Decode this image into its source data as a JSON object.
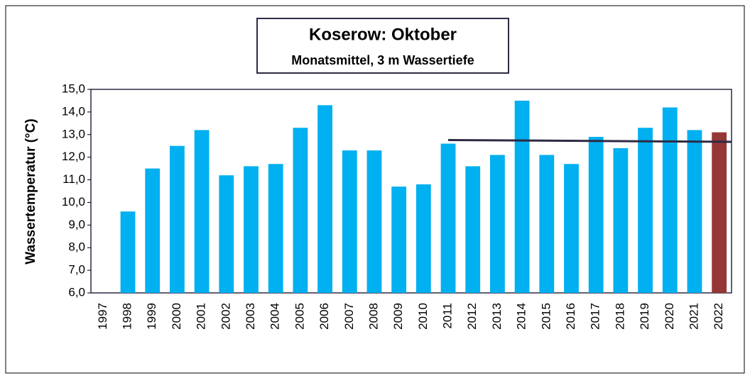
{
  "chart_data": {
    "type": "bar",
    "title": "Koserow: Oktober",
    "subtitle": "Monatsmittel, 3 m Wassertiefe",
    "y_label": "Wassertemperatur (°C)",
    "categories": [
      "1997",
      "1998",
      "1999",
      "2000",
      "2001",
      "2002",
      "2003",
      "2004",
      "2005",
      "2006",
      "2007",
      "2008",
      "2009",
      "2010",
      "2011",
      "2012",
      "2013",
      "2014",
      "2015",
      "2016",
      "2017",
      "2018",
      "2019",
      "2020",
      "2021",
      "2022"
    ],
    "values": [
      null,
      9.6,
      11.5,
      12.5,
      13.2,
      11.2,
      11.6,
      11.7,
      13.3,
      14.3,
      12.3,
      12.3,
      10.7,
      10.8,
      12.6,
      11.6,
      12.1,
      14.5,
      12.1,
      11.7,
      12.9,
      12.4,
      13.3,
      14.2,
      13.2,
      13.1
    ],
    "colors": [
      "#00b0f0",
      "#00b0f0",
      "#00b0f0",
      "#00b0f0",
      "#00b0f0",
      "#00b0f0",
      "#00b0f0",
      "#00b0f0",
      "#00b0f0",
      "#00b0f0",
      "#00b0f0",
      "#00b0f0",
      "#00b0f0",
      "#00b0f0",
      "#00b0f0",
      "#00b0f0",
      "#00b0f0",
      "#00b0f0",
      "#00b0f0",
      "#00b0f0",
      "#00b0f0",
      "#00b0f0",
      "#00b0f0",
      "#00b0f0",
      "#00b0f0",
      "#953735"
    ],
    "trend": {
      "x": [
        "2011",
        "2022"
      ],
      "values": [
        12.76,
        12.68
      ],
      "color": "#2e2a44"
    },
    "ylim": [
      6,
      15
    ],
    "yticks": [
      {
        "value": 6,
        "label": "6,0"
      },
      {
        "value": 7,
        "label": "7,0"
      },
      {
        "value": 8,
        "label": "8,0"
      },
      {
        "value": 9,
        "label": "9,0"
      },
      {
        "value": 10,
        "label": "10,0"
      },
      {
        "value": 11,
        "label": "11,0"
      },
      {
        "value": 12,
        "label": "12,0"
      },
      {
        "value": 13,
        "label": "13,0"
      },
      {
        "value": 14,
        "label": "14,0"
      },
      {
        "value": 15,
        "label": "15,0"
      }
    ]
  }
}
